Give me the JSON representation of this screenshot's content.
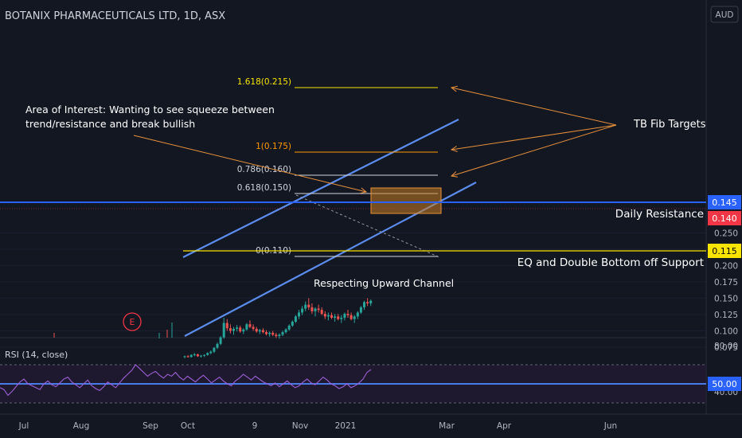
{
  "header": {
    "title": "BOTANIX PHARMACEUTICALS LTD, 1D, ASX",
    "currency": "AUD"
  },
  "price_axis": {
    "ticks": [
      "0.250",
      "0.225",
      "0.200",
      "0.175",
      "0.150",
      "0.125",
      "0.100",
      "0.075"
    ],
    "badges": [
      {
        "label": "0.145",
        "value": 0.145,
        "bg": "#2962ff",
        "fg": "#ffffff"
      },
      {
        "label": "0.140",
        "value": 0.14,
        "bg": "#f23645",
        "fg": "#ffffff"
      },
      {
        "label": "0.115",
        "value": 0.115,
        "bg": "#f9e400",
        "fg": "#000000"
      }
    ]
  },
  "time_axis": {
    "labels": [
      "Jul",
      "Aug",
      "Sep",
      "Oct",
      "9",
      "Nov",
      "2021",
      "Mar",
      "Apr",
      "Jun"
    ]
  },
  "rsi_panel": {
    "title": "RSI (14, close)",
    "ticks": [
      "80.00",
      "40.00"
    ],
    "badge": "50.00",
    "color": "#9c5fd6",
    "values": [
      46,
      44,
      38,
      42,
      47,
      52,
      55,
      50,
      48,
      46,
      44,
      50,
      53,
      49,
      47,
      51,
      55,
      57,
      52,
      49,
      46,
      50,
      54,
      48,
      45,
      43,
      47,
      52,
      49,
      46,
      51,
      56,
      60,
      64,
      70,
      66,
      62,
      58,
      61,
      63,
      59,
      56,
      60,
      58,
      62,
      57,
      54,
      58,
      55,
      52,
      56,
      59,
      55,
      51,
      54,
      57,
      53,
      50,
      48,
      53,
      56,
      60,
      57,
      54,
      58,
      55,
      52,
      50,
      48,
      51,
      47,
      50,
      53,
      49,
      46,
      48,
      52,
      55,
      51,
      49,
      53,
      57,
      54,
      50,
      48,
      45,
      47,
      50,
      46,
      48,
      51,
      55,
      62,
      65
    ]
  },
  "annotations": {
    "area_of_interest_line1": "Area of Interest: Wanting to see squeeze between",
    "area_of_interest_line2": "trend/resistance and break bullish",
    "tb_fib_targets": "TB Fib Targets",
    "daily_resistance": "Daily Resistance",
    "eq_double_bottom": "EQ and Double Bottom off Support",
    "respecting_channel": "Respecting Upward Channel",
    "earnings_marker": "E"
  },
  "fib_levels": [
    {
      "label": "1.618(0.215)",
      "value": 0.215,
      "color": "#f9e400"
    },
    {
      "label": "1(0.175)",
      "value": 0.175,
      "color": "#ff9800"
    },
    {
      "label": "0.786(0.160)",
      "value": 0.16,
      "color": "#d1d4dc"
    },
    {
      "label": "0.618(0.150)",
      "value": 0.15,
      "color": "#d1d4dc"
    },
    {
      "label": "0(0.110)",
      "value": 0.11,
      "color": "#d1d4dc"
    }
  ],
  "colors": {
    "background": "#131722",
    "up": "#26a69a",
    "down": "#ef5350",
    "channel": "#5b8def",
    "resistance": "#2962ff",
    "support": "#f9e400",
    "arrows": "#e8913a",
    "aoi_box": "#c77d20"
  },
  "chart_data": {
    "type": "candlestick",
    "title": "BOTANIX PHARMACEUTICALS LTD, 1D, ASX",
    "ylim": [
      0.06,
      0.26
    ],
    "candles": [
      [
        0.06,
        0.062,
        0.058,
        0.061
      ],
      [
        0.061,
        0.063,
        0.059,
        0.06
      ],
      [
        0.06,
        0.064,
        0.059,
        0.063
      ],
      [
        0.063,
        0.066,
        0.061,
        0.064
      ],
      [
        0.064,
        0.065,
        0.06,
        0.061
      ],
      [
        0.061,
        0.063,
        0.059,
        0.062
      ],
      [
        0.062,
        0.064,
        0.06,
        0.063
      ],
      [
        0.063,
        0.067,
        0.062,
        0.066
      ],
      [
        0.066,
        0.07,
        0.064,
        0.068
      ],
      [
        0.068,
        0.075,
        0.066,
        0.074
      ],
      [
        0.074,
        0.082,
        0.072,
        0.08
      ],
      [
        0.08,
        0.092,
        0.078,
        0.09
      ],
      [
        0.09,
        0.12,
        0.088,
        0.112
      ],
      [
        0.112,
        0.118,
        0.1,
        0.104
      ],
      [
        0.104,
        0.11,
        0.096,
        0.1
      ],
      [
        0.1,
        0.106,
        0.094,
        0.103
      ],
      [
        0.103,
        0.109,
        0.099,
        0.105
      ],
      [
        0.105,
        0.108,
        0.097,
        0.099
      ],
      [
        0.099,
        0.104,
        0.095,
        0.102
      ],
      [
        0.102,
        0.112,
        0.1,
        0.11
      ],
      [
        0.11,
        0.116,
        0.104,
        0.106
      ],
      [
        0.106,
        0.11,
        0.1,
        0.103
      ],
      [
        0.103,
        0.106,
        0.097,
        0.099
      ],
      [
        0.099,
        0.103,
        0.095,
        0.101
      ],
      [
        0.101,
        0.104,
        0.096,
        0.098
      ],
      [
        0.098,
        0.101,
        0.093,
        0.095
      ],
      [
        0.095,
        0.099,
        0.091,
        0.097
      ],
      [
        0.097,
        0.1,
        0.092,
        0.094
      ],
      [
        0.094,
        0.097,
        0.089,
        0.092
      ],
      [
        0.092,
        0.096,
        0.088,
        0.094
      ],
      [
        0.094,
        0.1,
        0.092,
        0.098
      ],
      [
        0.098,
        0.104,
        0.096,
        0.102
      ],
      [
        0.102,
        0.11,
        0.1,
        0.108
      ],
      [
        0.108,
        0.116,
        0.106,
        0.114
      ],
      [
        0.114,
        0.124,
        0.112,
        0.122
      ],
      [
        0.122,
        0.132,
        0.118,
        0.128
      ],
      [
        0.128,
        0.138,
        0.124,
        0.134
      ],
      [
        0.134,
        0.145,
        0.13,
        0.14
      ],
      [
        0.14,
        0.15,
        0.132,
        0.136
      ],
      [
        0.136,
        0.142,
        0.126,
        0.13
      ],
      [
        0.13,
        0.136,
        0.122,
        0.134
      ],
      [
        0.134,
        0.14,
        0.128,
        0.132
      ],
      [
        0.132,
        0.136,
        0.124,
        0.126
      ],
      [
        0.126,
        0.13,
        0.118,
        0.122
      ],
      [
        0.122,
        0.128,
        0.116,
        0.124
      ],
      [
        0.124,
        0.128,
        0.118,
        0.12
      ],
      [
        0.12,
        0.126,
        0.114,
        0.122
      ],
      [
        0.122,
        0.126,
        0.116,
        0.118
      ],
      [
        0.118,
        0.124,
        0.112,
        0.12
      ],
      [
        0.12,
        0.128,
        0.116,
        0.126
      ],
      [
        0.126,
        0.132,
        0.12,
        0.124
      ],
      [
        0.124,
        0.128,
        0.116,
        0.118
      ],
      [
        0.118,
        0.124,
        0.112,
        0.122
      ],
      [
        0.122,
        0.13,
        0.118,
        0.128
      ],
      [
        0.128,
        0.138,
        0.126,
        0.136
      ],
      [
        0.136,
        0.146,
        0.132,
        0.144
      ],
      [
        0.144,
        0.15,
        0.138,
        0.142
      ],
      [
        0.142,
        0.148,
        0.138,
        0.146
      ]
    ],
    "channel_upper": [
      {
        "date": "2020-09-10",
        "price": 0.111
      },
      {
        "date": "2021-02-20",
        "price": 0.195
      }
    ],
    "channel_lower": [
      {
        "date": "2020-09-10",
        "price": 0.07
      },
      {
        "date": "2021-03-10",
        "price": 0.153
      }
    ]
  }
}
